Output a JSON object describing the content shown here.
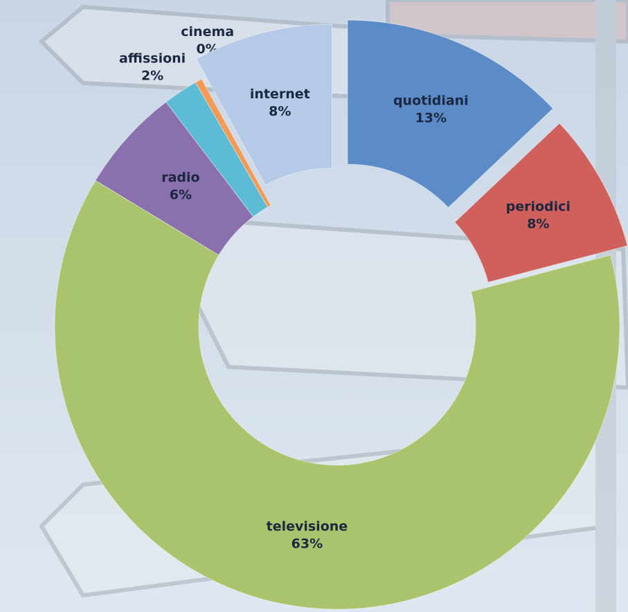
{
  "chart_data": {
    "type": "donut",
    "categories": [
      "quotidiani",
      "periodici",
      "televisione",
      "radio",
      "affissioni",
      "cinema",
      "internet"
    ],
    "values": [
      13,
      8,
      63,
      6,
      2,
      0.4,
      8
    ],
    "value_labels": [
      "13%",
      "8%",
      "63%",
      "6%",
      "2%",
      "0%",
      "8%"
    ],
    "colors": [
      "#5b8cc8",
      "#d0605c",
      "#a9c46c",
      "#8a70ad",
      "#5cbcd6",
      "#f49a55",
      "#b4cae6"
    ]
  }
}
